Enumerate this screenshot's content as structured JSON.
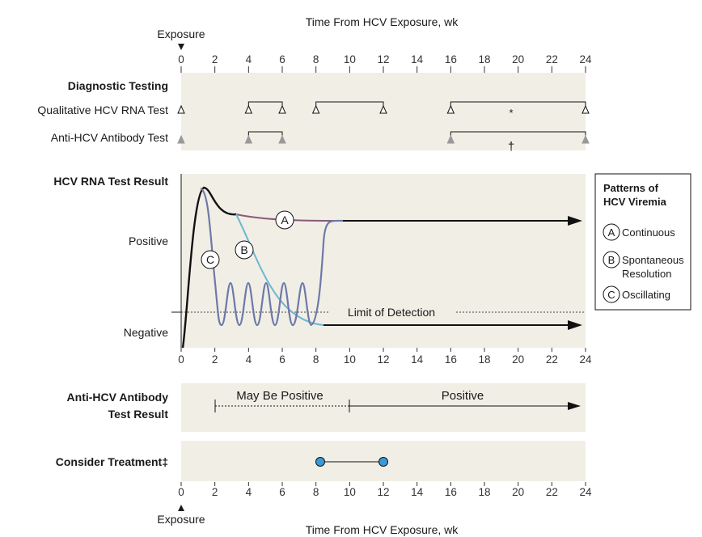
{
  "axis": {
    "title": "Time From HCV Exposure, wk",
    "exposure_label": "Exposure",
    "ticks": [
      "0",
      "2",
      "4",
      "6",
      "8",
      "10",
      "12",
      "14",
      "16",
      "18",
      "20",
      "22",
      "24"
    ]
  },
  "diagnostic": {
    "heading": "Diagnostic Testing",
    "rna_label": "Qualitative HCV RNA Test",
    "ab_label": "Anti-HCV Antibody Test",
    "asterisk": "*",
    "dagger": "†"
  },
  "rna_result": {
    "heading": "HCV RNA Test Result",
    "positive": "Positive",
    "negative": "Negative",
    "lod": "Limit of Detection",
    "curve_a": "A",
    "curve_b": "B",
    "curve_c": "C"
  },
  "legend": {
    "title_line1": "Patterns of",
    "title_line2": "HCV Viremia",
    "a_letter": "A",
    "a_text": "Continuous",
    "b_letter": "B",
    "b_text_line1": "Spontaneous",
    "b_text_line2": "Resolution",
    "c_letter": "C",
    "c_text": "Oscillating"
  },
  "antibody_result": {
    "heading_line1": "Anti-HCV Antibody",
    "heading_line2": "Test Result",
    "may_be_positive": "May Be Positive",
    "positive": "Positive"
  },
  "treatment": {
    "heading": "Consider Treatment‡"
  },
  "colors": {
    "panel": "#f1eee6",
    "curve_a": "#8a5a78",
    "curve_b": "#6ab8d0",
    "curve_c": "#6d79a8",
    "marker_grey": "#999999",
    "treatment_dot": "#3a9ad9"
  }
}
